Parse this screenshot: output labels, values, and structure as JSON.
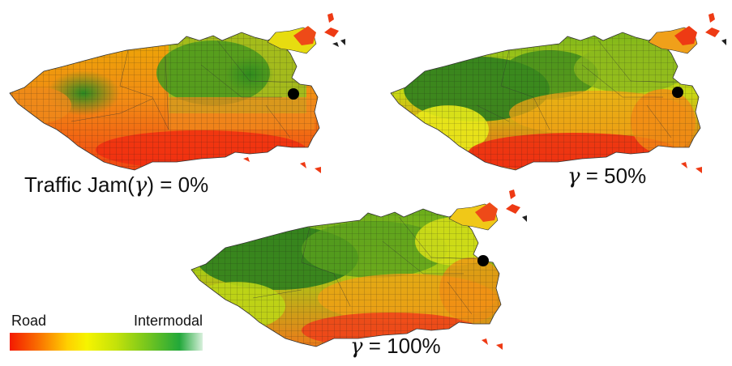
{
  "panels": [
    {
      "id": "jam-0",
      "label_prefix": "Traffic Jam(",
      "gamma_symbol": "γ",
      "label_suffix": ") = 0%"
    },
    {
      "id": "jam-50",
      "label_prefix": "",
      "gamma_symbol": "γ",
      "label_suffix": " = 50%"
    },
    {
      "id": "jam-100",
      "label_prefix": "",
      "gamma_symbol": "γ",
      "label_suffix": " = 100%"
    }
  ],
  "legend": {
    "left_label": "Road",
    "right_label": "Intermodal"
  },
  "colors": {
    "road": "#f41a00",
    "mid": "#f6f400",
    "intermodal": "#22a83a",
    "marker": "#000000"
  }
}
